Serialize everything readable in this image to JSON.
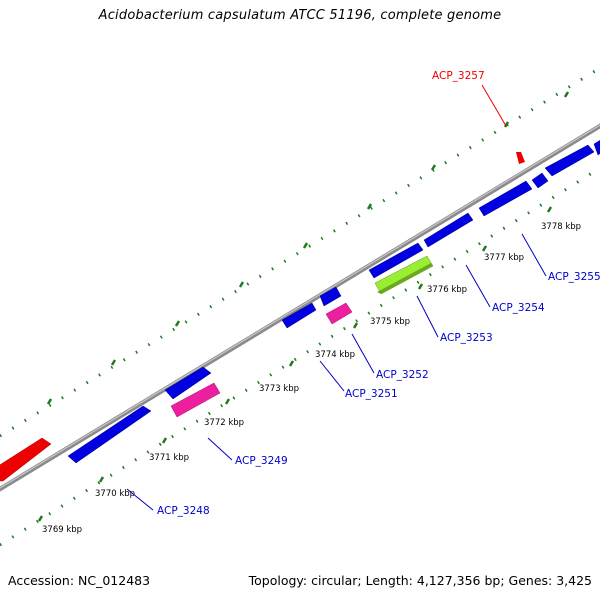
{
  "title": "Acidobacterium capsulatum ATCC 51196, complete genome",
  "footer": {
    "accession": "Accession: NC_012483",
    "stats": "Topology: circular; Length: 4,127,356 bp; Genes: 3,425"
  },
  "colors": {
    "backbone": "#7a7a7a",
    "tick": "#1f7a1f",
    "cds": "#0000e0",
    "rrna": "#ee0000",
    "trna": "#ee1f9e",
    "misc": "#99ee33",
    "label_blue": "#0000cc",
    "label_red": "#ee0000"
  },
  "scale_labels": [
    "3769 kbp",
    "3770 kbp",
    "3771 kbp",
    "3772 kbp",
    "3773 kbp",
    "3774 kbp",
    "3775 kbp",
    "3776 kbp",
    "3777 kbp",
    "3778 kbp"
  ],
  "genes": [
    {
      "label": "ACP_3248",
      "type": "cds",
      "strand": "+"
    },
    {
      "label": "ACP_3249",
      "type": "trna",
      "strand": "+"
    },
    {
      "label": "ACP_3251",
      "type": "cds",
      "strand": "-"
    },
    {
      "label": "ACP_3252",
      "type": "trna",
      "strand": "+"
    },
    {
      "label": "ACP_3253",
      "type": "misc",
      "strand": "+"
    },
    {
      "label": "ACP_3254",
      "type": "cds",
      "strand": "+"
    },
    {
      "label": "ACP_3255",
      "type": "cds",
      "strand": "+"
    },
    {
      "label": "ACP_3257",
      "type": "rrna",
      "strand": "+"
    }
  ]
}
